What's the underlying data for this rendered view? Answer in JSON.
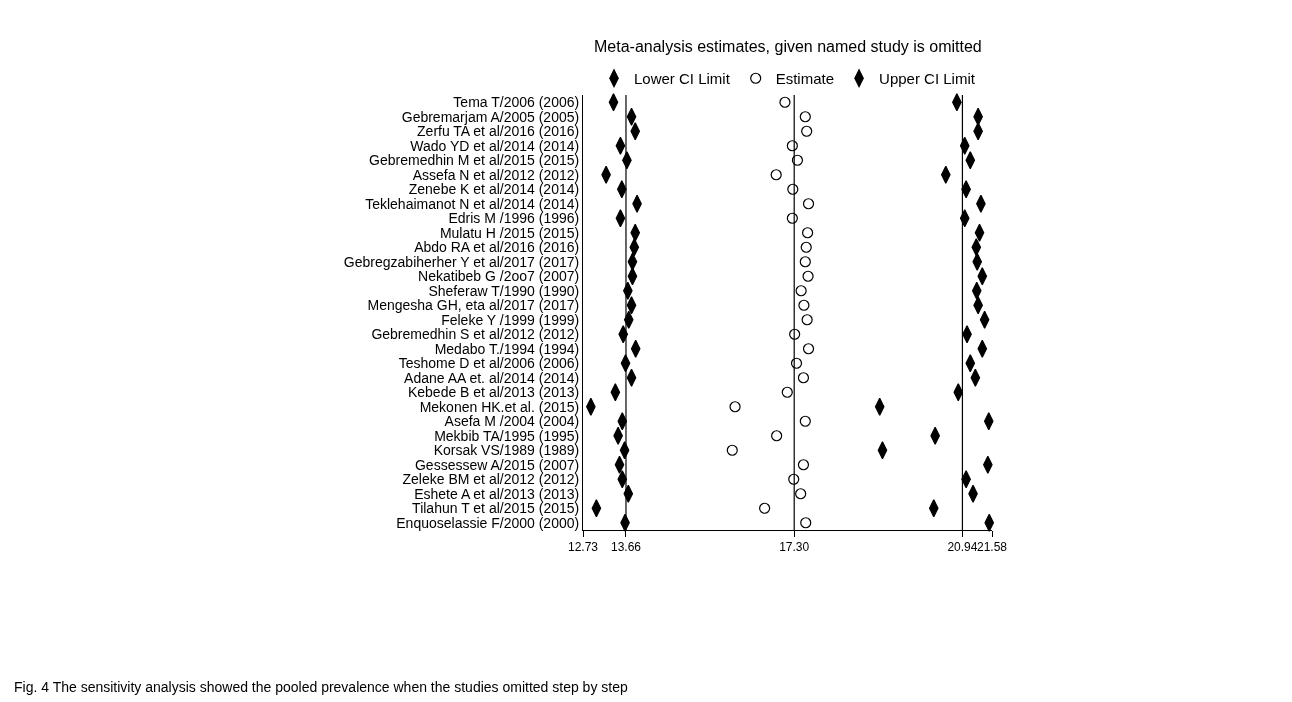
{
  "chart_data": {
    "type": "scatter",
    "title": "Meta-analysis estimates, given named study is omitted",
    "categories": [
      "Tema T/2006 (2006)",
      "Gebremarjam A/2005 (2005)",
      "Zerfu TA et al/2016 (2016)",
      "Wado YD et al/2014 (2014)",
      "Gebremedhin M et al/2015 (2015)",
      "Assefa N et al/2012 (2012)",
      "Zenebe K et al/2014 (2014)",
      "Teklehaimanot N et al/2014 (2014)",
      "Edris M /1996 (1996)",
      "Mulatu H /2015 (2015)",
      "Abdo RA et al/2016 (2016)",
      "Gebregzabiherher Y et al/2017 (2017)",
      "Nekatibeb G /2oo7 (2007)",
      "Sheferaw T/1990 (1990)",
      "Mengesha GH, eta al/2017 (2017)",
      "Feleke Y /1999 (1999)",
      "Gebremedhin S et al/2012 (2012)",
      "Medabo T./1994 (1994)",
      "Teshome D et al/2006 (2006)",
      "Adane AA et. al/2014 (2014)",
      "Kebede B et al/2013 (2013)",
      "Mekonen HK.et al. (2015)",
      "Asefa M /2004 (2004)",
      "Mekbib TA/1995 (1995)",
      "Korsak VS/1989 (1989)",
      "Gessessew A/2015 (2007)",
      "Zeleke BM et al/2012 (2012)",
      "Eshete A et al/2013 (2013)",
      "Tilahun T et al/2015 (2015)",
      "Enquoselassie F/2000 (2000)"
    ],
    "orientation": "horizontal",
    "series": [
      {
        "name": "Lower CI Limit",
        "color": "#000000",
        "marker": "diamond",
        "values": [
          13.39,
          13.78,
          13.86,
          13.54,
          13.68,
          13.23,
          13.57,
          13.9,
          13.54,
          13.86,
          13.84,
          13.8,
          13.8,
          13.7,
          13.78,
          13.72,
          13.6,
          13.87,
          13.65,
          13.78,
          13.43,
          12.9,
          13.58,
          13.49,
          13.63,
          13.52,
          13.58,
          13.71,
          13.02,
          13.64
        ]
      },
      {
        "name": "Estimate",
        "color": "#000000",
        "marker": "circle",
        "values": [
          17.1,
          17.54,
          17.57,
          17.26,
          17.37,
          16.91,
          17.27,
          17.61,
          17.26,
          17.59,
          17.56,
          17.54,
          17.6,
          17.45,
          17.51,
          17.58,
          17.31,
          17.61,
          17.35,
          17.5,
          17.15,
          16.02,
          17.54,
          16.92,
          15.96,
          17.5,
          17.29,
          17.44,
          16.66,
          17.55
        ]
      },
      {
        "name": "Upper CI Limit",
        "color": "#000000",
        "marker": "diamond",
        "values": [
          20.82,
          21.28,
          21.28,
          20.99,
          21.11,
          20.58,
          21.02,
          21.34,
          20.99,
          21.31,
          21.24,
          21.26,
          21.37,
          21.25,
          21.28,
          21.42,
          21.04,
          21.37,
          21.11,
          21.22,
          20.85,
          19.15,
          21.51,
          20.35,
          19.21,
          21.49,
          21.02,
          21.17,
          20.32,
          21.52
        ]
      }
    ],
    "xlim": [
      12.73,
      21.58
    ],
    "xticks": [
      {
        "value": 12.73,
        "label": "12.73"
      },
      {
        "value": 13.66,
        "label": "13.66"
      },
      {
        "value": 17.3,
        "label": "17.30"
      },
      {
        "value": 20.94,
        "label": "20.94"
      },
      {
        "value": 21.58,
        "label": "21.58"
      }
    ],
    "ref_lines": [
      {
        "axis": "x",
        "value": 13.66,
        "color": "#000000"
      },
      {
        "axis": "x",
        "value": 17.3,
        "color": "#000000"
      },
      {
        "axis": "x",
        "value": 20.94,
        "color": "#000000"
      }
    ],
    "legend": "top",
    "annotations": [
      "Fig. 4 The sensitivity analysis showed the pooled prevalence when the studies omitted step by step"
    ]
  }
}
